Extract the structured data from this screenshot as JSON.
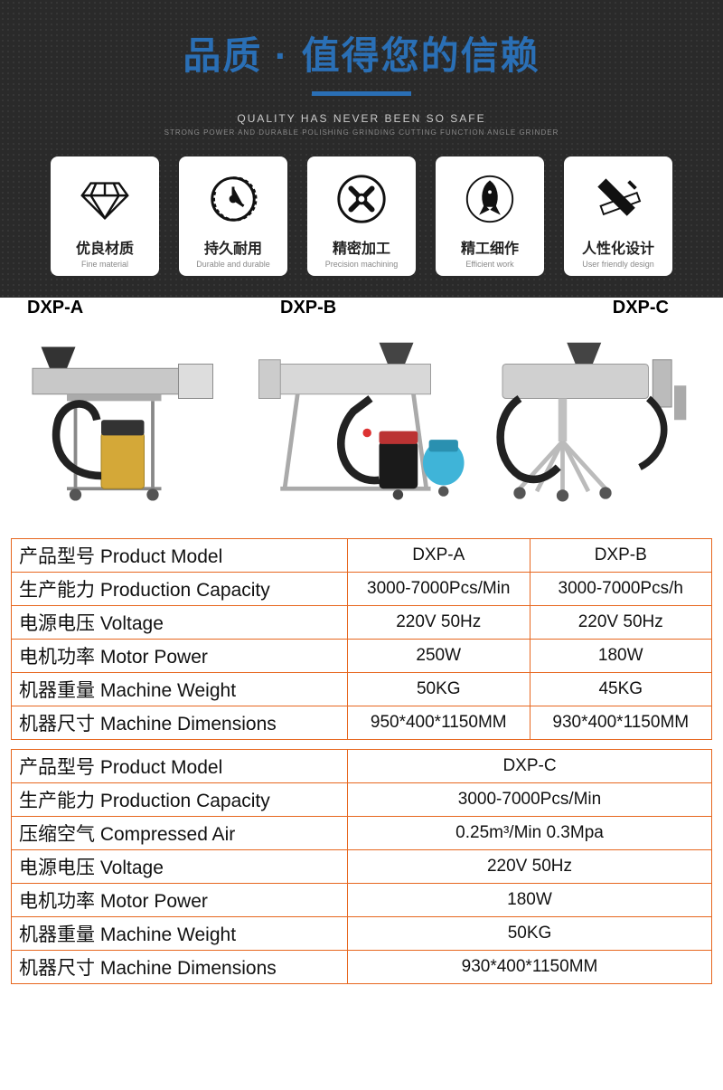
{
  "hero": {
    "title": "品质 · 值得您的信赖",
    "sub1": "QUALITY HAS NEVER BEEN SO SAFE",
    "sub2": "STRONG POWER AND DURABLE POLISHING GRINDING CUTTING FUNCTION ANGLE GRINDER",
    "title_color": "#2a6fb5",
    "bg_color": "#2a2a2a"
  },
  "features": [
    {
      "cn": "优良材质",
      "en": "Fine material",
      "icon": "diamond"
    },
    {
      "cn": "持久耐用",
      "en": "Durable and durable",
      "icon": "clock"
    },
    {
      "cn": "精密加工",
      "en": "Precision machining",
      "icon": "tools"
    },
    {
      "cn": "精工细作",
      "en": "Efficient work",
      "icon": "rocket"
    },
    {
      "cn": "人性化设计",
      "en": "User friendly design",
      "icon": "ruler"
    }
  ],
  "products": [
    {
      "label": "DXP-A"
    },
    {
      "label": "DXP-B"
    },
    {
      "label": "DXP-C"
    }
  ],
  "table1": {
    "border_color": "#e7671f",
    "rows": [
      {
        "label": "产品型号 Product Model",
        "a": "DXP-A",
        "b": "DXP-B"
      },
      {
        "label": "生产能力 Production Capacity",
        "a": "3000-7000Pcs/Min",
        "b": "3000-7000Pcs/h"
      },
      {
        "label": "电源电压 Voltage",
        "a": "220V 50Hz",
        "b": "220V 50Hz"
      },
      {
        "label": "电机功率 Motor Power",
        "a": "250W",
        "b": "180W"
      },
      {
        "label": "机器重量 Machine Weight",
        "a": "50KG",
        "b": "45KG"
      },
      {
        "label": "机器尺寸 Machine Dimensions",
        "a": "950*400*1150MM",
        "b": "930*400*1150MM"
      }
    ]
  },
  "table2": {
    "border_color": "#e7671f",
    "rows": [
      {
        "label": "产品型号 Product Model",
        "c": "DXP-C"
      },
      {
        "label": "生产能力 Production Capacity",
        "c": "3000-7000Pcs/Min"
      },
      {
        "label": "压缩空气 Compressed Air",
        "c": "0.25m³/Min 0.3Mpa"
      },
      {
        "label": "电源电压 Voltage",
        "c": "220V 50Hz"
      },
      {
        "label": "电机功率 Motor Power",
        "c": "180W"
      },
      {
        "label": "机器重量 Machine Weight",
        "c": "50KG"
      },
      {
        "label": "机器尺寸 Machine Dimensions",
        "c": "930*400*1150MM"
      }
    ]
  }
}
